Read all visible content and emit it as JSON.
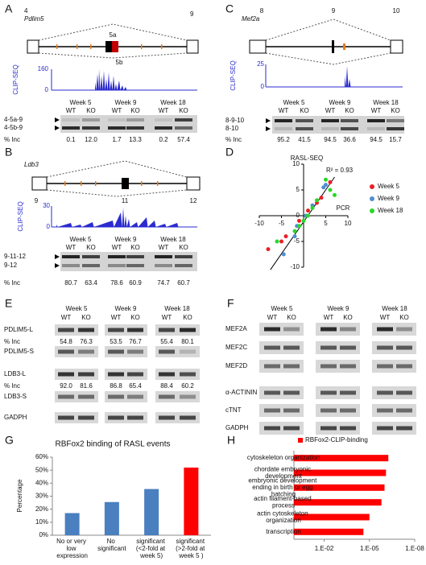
{
  "panels": {
    "A": {
      "label": "A",
      "gene": "Pdlim5",
      "exons": [
        "4",
        "5a",
        "5b",
        "9"
      ],
      "clip_label": "CLIP-SEQ",
      "clip_ticks": [
        160,
        0
      ],
      "weeks": [
        "Week 5",
        "Week 9",
        "Week 18"
      ],
      "lanes": [
        "WT",
        "KO",
        "WT",
        "KO",
        "WT",
        "KO"
      ],
      "bands": [
        "4-5a-9",
        "4-5b-9"
      ],
      "inc_label": "% Inc",
      "inc": [
        "0.1",
        "12.0",
        "1.7",
        "13.3",
        "0.2",
        "57.4"
      ]
    },
    "B": {
      "label": "B",
      "gene": "Ldb3",
      "exons": [
        "9",
        "11",
        "12"
      ],
      "clip_label": "CLIP-SEQ",
      "clip_ticks": [
        30,
        0
      ],
      "weeks": [
        "Week 5",
        "Week 9",
        "Week 18"
      ],
      "lanes": [
        "WT",
        "KO",
        "WT",
        "KO",
        "WT",
        "KO"
      ],
      "bands": [
        "9-11-12",
        "9-12"
      ],
      "inc_label": "% Inc",
      "inc": [
        "80.7",
        "63.4",
        "78.6",
        "60.9",
        "74.7",
        "60.7"
      ]
    },
    "C": {
      "label": "C",
      "gene": "Mef2a",
      "exons": [
        "8",
        "9",
        "10"
      ],
      "clip_label": "CLIP-SEQ",
      "clip_ticks": [
        25,
        0
      ],
      "weeks": [
        "Week 5",
        "Week 9",
        "Week 18"
      ],
      "lanes": [
        "WT",
        "KO",
        "WT",
        "KO",
        "WT",
        "KO"
      ],
      "bands": [
        "8-9-10",
        "8-10"
      ],
      "inc_label": "% Inc",
      "inc": [
        "95.2",
        "41.5",
        "94.5",
        "36.6",
        "94.5",
        "15.7"
      ]
    },
    "D": {
      "label": "D"
    },
    "E": {
      "label": "E",
      "weeks": [
        "Week 5",
        "Week 9",
        "Week 18"
      ],
      "lanes": [
        "WT",
        "KO",
        "WT",
        "KO",
        "WT",
        "KO"
      ],
      "rows": [
        "PDLIM5-L",
        "PDLIM5-S",
        "LDB3-L",
        "LDB3-S",
        "GADPH"
      ],
      "inc_label": "% Inc",
      "inc_pdlim5": [
        "54.8",
        "76.3",
        "53.5",
        "76.7",
        "55.4",
        "80.1"
      ],
      "inc_ldb3": [
        "92.0",
        "81.6",
        "86.8",
        "65.4",
        "88.4",
        "60.2"
      ]
    },
    "F": {
      "label": "F",
      "weeks": [
        "Week 5",
        "Week 9",
        "Week 18"
      ],
      "lanes": [
        "WT",
        "KO",
        "WT",
        "KO",
        "WT",
        "KO"
      ],
      "rows": [
        "MEF2A",
        "MEF2C",
        "MEF2D",
        "α-ACTININ",
        "cTNT",
        "GADPH"
      ]
    },
    "G": {
      "label": "G"
    },
    "H": {
      "label": "H"
    }
  },
  "chart_data": [
    {
      "type": "scatter",
      "y_label": "RASL-SEQ",
      "x_label": "PCR",
      "annotation": "R² = 0.93",
      "xlim": [
        -10,
        10
      ],
      "ylim": [
        -10,
        10
      ],
      "xticks": [
        -10,
        -5,
        5,
        10
      ],
      "yticks": [
        -10,
        -5,
        0,
        5,
        10
      ],
      "series": [
        {
          "name": "Week 5",
          "color": "#e8202a",
          "x": [
            -8,
            -5,
            -4,
            -1,
            1,
            3,
            4,
            6
          ],
          "values": [
            -6.5,
            -5,
            -4,
            -1,
            1,
            2.5,
            3.5,
            6.5
          ]
        },
        {
          "name": "Week 9",
          "color": "#4f8fd0",
          "x": [
            -4.5,
            -2,
            -1.5,
            0.5,
            2,
            4.5,
            5
          ],
          "values": [
            -7.5,
            -4,
            -2,
            0,
            2,
            5.5,
            6
          ]
        },
        {
          "name": "Week 18",
          "color": "#28d828",
          "x": [
            -6,
            -2,
            -1,
            0,
            1,
            2,
            3,
            5,
            6,
            7
          ],
          "values": [
            -5,
            -3,
            -2,
            -1,
            0,
            1.5,
            3,
            7,
            5,
            4
          ]
        }
      ],
      "trendline": {
        "x": [
          -7.5,
          7
        ],
        "values": [
          -10.5,
          7.5
        ]
      }
    },
    {
      "type": "bar",
      "title": "RBFox2 binding of RASL events",
      "y_label": "Percentage",
      "categories": [
        "No or very low expression",
        "No significant",
        "significant (<2-fold at week 5)",
        "significant (>2-fold at week 5 )"
      ],
      "values": [
        17,
        25.5,
        35.5,
        52
      ],
      "colors": [
        "#4a7fc0",
        "#4a7fc0",
        "#4a7fc0",
        "#ff0000"
      ],
      "ylim": [
        0,
        60
      ],
      "yticks": [
        {
          "value": 0,
          "label": "0%"
        },
        {
          "value": 10,
          "label": "10%"
        },
        {
          "value": 20,
          "label": "20%"
        },
        {
          "value": 30,
          "label": "30%"
        },
        {
          "value": 40,
          "label": "40%"
        },
        {
          "value": 50,
          "label": "50%"
        },
        {
          "value": 60,
          "label": "60%"
        }
      ]
    },
    {
      "type": "hbar",
      "log_scale": true,
      "categories": [
        "cytoskeleton organization",
        "chordate embryonic development",
        "embryonic development ending in birth or egg hatching",
        "actin filament-based process",
        "actin cytoskeleton organization",
        "transcription"
      ],
      "series": [
        {
          "name": "RBFox2-CLIP-binding",
          "color": "#ff0000",
          "values": [
            5.6e-07,
            8e-07,
            1e-06,
            1.6e-06,
            1e-05,
            2.5e-05
          ]
        }
      ],
      "xlim": [
        1,
        1e-08
      ],
      "xticks": [
        {
          "value": 0.01,
          "label": "1.E-02"
        },
        {
          "value": 1e-05,
          "label": "1.E-05"
        },
        {
          "value": 1e-08,
          "label": "1.E-08"
        }
      ]
    }
  ]
}
